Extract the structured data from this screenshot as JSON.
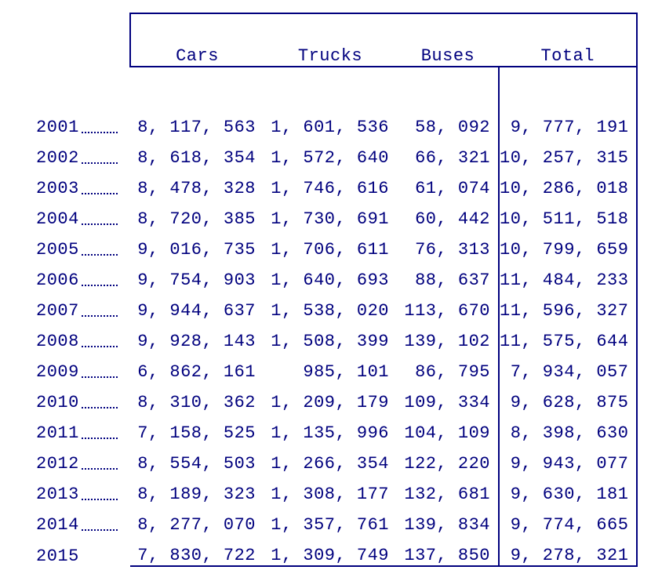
{
  "table": {
    "type": "table",
    "text_color": "#00007e",
    "border_color": "#00007e",
    "background_color": "#ffffff",
    "font_family": "Courier New, monospace",
    "font_size_pt": 16,
    "columns": [
      "Cars",
      "Trucks",
      "Buses",
      "Total"
    ],
    "column_align": [
      "right",
      "right",
      "right",
      "right"
    ],
    "rows": [
      {
        "year": "2001",
        "year_leader": true,
        "cars": "8, 117, 563",
        "trucks": "1, 601, 536",
        "buses": "58, 092",
        "total": "9, 777, 191"
      },
      {
        "year": "2002",
        "year_leader": true,
        "cars": "8, 618, 354",
        "trucks": "1, 572, 640",
        "buses": "66, 321",
        "total": "10, 257, 315"
      },
      {
        "year": "2003",
        "year_leader": true,
        "cars": "8, 478, 328",
        "trucks": "1, 746, 616",
        "buses": "61, 074",
        "total": "10, 286, 018"
      },
      {
        "year": "2004",
        "year_leader": true,
        "cars": "8, 720, 385",
        "trucks": "1, 730, 691",
        "buses": "60, 442",
        "total": "10, 511, 518"
      },
      {
        "year": "2005",
        "year_leader": true,
        "cars": "9, 016, 735",
        "trucks": "1, 706, 611",
        "buses": "76, 313",
        "total": "10, 799, 659"
      },
      {
        "year": "2006",
        "year_leader": true,
        "cars": "9, 754, 903",
        "trucks": "1, 640, 693",
        "buses": "88, 637",
        "total": "11, 484, 233"
      },
      {
        "year": "2007",
        "year_leader": true,
        "cars": "9, 944, 637",
        "trucks": "1, 538, 020",
        "buses": "113, 670",
        "total": "11, 596, 327"
      },
      {
        "year": "2008",
        "year_leader": true,
        "cars": "9, 928, 143",
        "trucks": "1, 508, 399",
        "buses": "139, 102",
        "total": "11, 575, 644"
      },
      {
        "year": "2009",
        "year_leader": true,
        "cars": "6, 862, 161",
        "trucks": "985, 101",
        "buses": "86, 795",
        "total": "7, 934, 057"
      },
      {
        "year": "2010",
        "year_leader": true,
        "cars": "8, 310, 362",
        "trucks": "1, 209, 179",
        "buses": "109, 334",
        "total": "9, 628, 875"
      },
      {
        "year": "2011",
        "year_leader": true,
        "cars": "7, 158, 525",
        "trucks": "1, 135, 996",
        "buses": "104, 109",
        "total": "8, 398, 630"
      },
      {
        "year": "2012",
        "year_leader": true,
        "cars": "8, 554, 503",
        "trucks": "1, 266, 354",
        "buses": "122, 220",
        "total": "9, 943, 077"
      },
      {
        "year": "2013",
        "year_leader": true,
        "cars": "8, 189, 323",
        "trucks": "1, 308, 177",
        "buses": "132, 681",
        "total": "9, 630, 181"
      },
      {
        "year": "2014",
        "year_leader": true,
        "cars": "8, 277, 070",
        "trucks": "1, 357, 761",
        "buses": "139, 834",
        "total": "9, 774, 665"
      },
      {
        "year": "2015",
        "year_leader": false,
        "cars": "7, 830, 722",
        "trucks": "1, 309, 749",
        "buses": "137, 850",
        "total": "9, 278, 321"
      }
    ]
  }
}
